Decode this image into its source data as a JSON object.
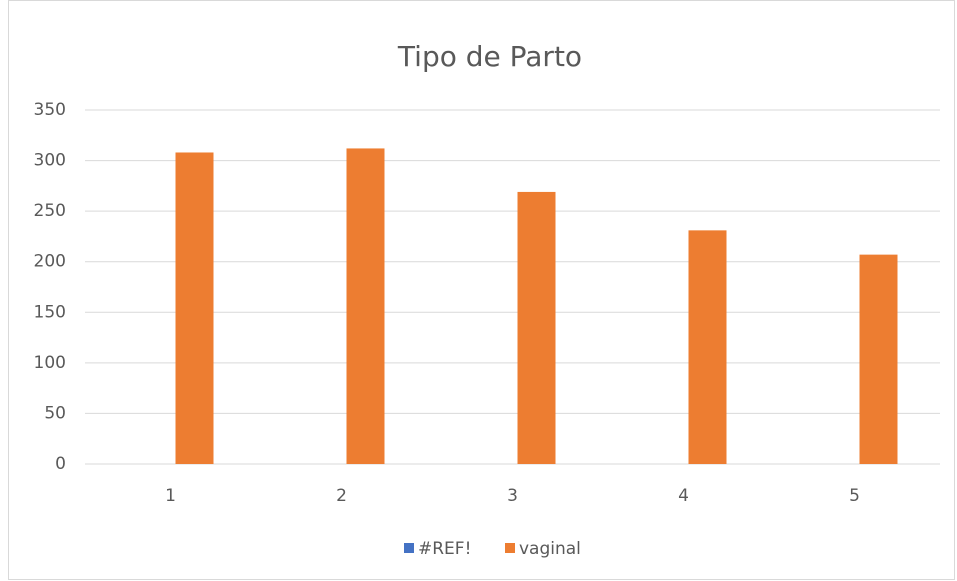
{
  "chart_data": {
    "type": "bar",
    "title": "Tipo de Parto",
    "categories": [
      "1",
      "2",
      "3",
      "4",
      "5"
    ],
    "series": [
      {
        "name": "#REF!",
        "color": "#4472c4",
        "values": [
          0,
          0,
          0,
          0,
          0
        ]
      },
      {
        "name": "vaginal",
        "color": "#ed7d31",
        "values": [
          308,
          312,
          269,
          231,
          207
        ]
      }
    ],
    "ylim": [
      0,
      350
    ],
    "yticks": [
      0,
      50,
      100,
      150,
      200,
      250,
      300,
      350
    ],
    "grid": true,
    "legend": "bottom"
  }
}
